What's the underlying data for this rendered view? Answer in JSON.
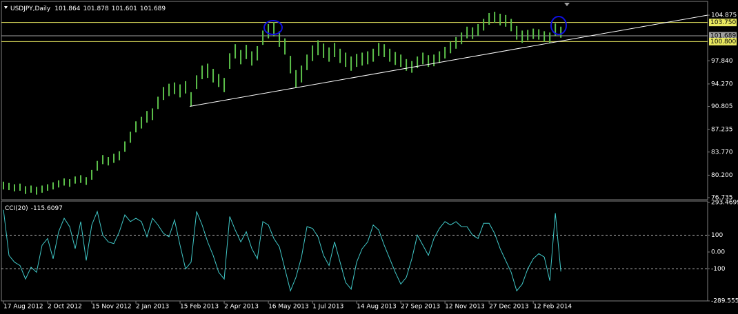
{
  "chart_data": [
    {
      "type": "ohlc",
      "title": "USDJPY,Daily",
      "quote": [
        101.864,
        101.878,
        101.601,
        101.689
      ],
      "color": "#5cc04a",
      "high": [
        79.2,
        79.0,
        78.8,
        78.9,
        78.5,
        78.6,
        78.4,
        78.6,
        78.8,
        79.1,
        79.4,
        79.7,
        79.6,
        80.0,
        80.2,
        79.9,
        81.0,
        82.4,
        83.3,
        83.0,
        83.5,
        83.9,
        85.4,
        86.9,
        88.5,
        89.2,
        90.1,
        90.5,
        92.3,
        93.8,
        94.3,
        94.5,
        94.2,
        94.7,
        93.0,
        95.6,
        97.1,
        97.4,
        96.6,
        95.8,
        95.2,
        99.0,
        100.4,
        99.5,
        100.3,
        99.3,
        100.1,
        102.5,
        103.5,
        103.8,
        102.4,
        101.3,
        98.6,
        96.4,
        97.1,
        98.8,
        100.2,
        101.0,
        100.5,
        99.9,
        100.6,
        99.7,
        99.1,
        98.5,
        98.9,
        99.1,
        99.3,
        99.7,
        100.6,
        100.4,
        99.7,
        99.2,
        98.8,
        98.1,
        97.8,
        98.5,
        99.1,
        98.7,
        98.8,
        99.3,
        100.0,
        100.8,
        101.5,
        102.2,
        103.1,
        103.0,
        103.5,
        104.3,
        105.2,
        105.4,
        105.1,
        104.9,
        104.3,
        103.2,
        102.5,
        102.6,
        102.8,
        102.7,
        102.4,
        102.2,
        103.6,
        103.1
      ],
      "low": [
        78.0,
        77.9,
        77.7,
        77.8,
        77.3,
        77.5,
        77.2,
        77.5,
        77.8,
        78.0,
        78.3,
        78.6,
        78.4,
        78.9,
        79.0,
        78.7,
        79.5,
        80.9,
        81.9,
        81.7,
        82.1,
        82.5,
        83.8,
        85.2,
        86.8,
        87.4,
        88.3,
        88.7,
        90.4,
        91.8,
        92.4,
        92.7,
        92.2,
        92.8,
        90.8,
        93.5,
        95.0,
        95.2,
        94.5,
        93.8,
        93.0,
        96.6,
        98.2,
        97.3,
        98.1,
        97.1,
        97.9,
        100.3,
        101.3,
        101.6,
        100.0,
        98.8,
        95.9,
        93.7,
        94.5,
        96.4,
        97.8,
        98.7,
        98.3,
        97.7,
        98.4,
        97.5,
        96.9,
        96.3,
        96.9,
        97.1,
        97.3,
        97.7,
        98.6,
        98.4,
        97.7,
        97.2,
        96.9,
        96.3,
        96.0,
        96.7,
        97.3,
        96.9,
        97.0,
        97.5,
        98.2,
        99.0,
        99.7,
        100.4,
        101.3,
        101.2,
        101.7,
        102.5,
        103.4,
        103.7,
        103.3,
        103.1,
        102.4,
        101.1,
        100.6,
        101.0,
        101.2,
        101.1,
        100.8,
        100.6,
        101.7,
        101.4
      ],
      "xlim": [
        0,
        127.6
      ],
      "ylim": [
        76.42,
        106.79
      ],
      "yticks": [
        104.875,
        {
          "value": 97.84,
          "label": "97.840"
        },
        {
          "value": 94.27,
          "label": "94.270"
        },
        90.805,
        87.235,
        {
          "value": 83.77,
          "label": "83.770"
        },
        {
          "value": 80.2,
          "label": "80.200"
        },
        76.735
      ],
      "hlines": [
        {
          "value": 103.75,
          "label": "103.750",
          "color": "#e8e860"
        },
        {
          "value": 101.689,
          "label": "101.689",
          "color": "#a0a0a0"
        },
        {
          "value": 100.8,
          "label": "100.800",
          "color": "#e8e860"
        }
      ],
      "trendline": {
        "x": [
          33.75,
          127.6
        ],
        "y": [
          90.805,
          104.875
        ],
        "color": "#ffffff"
      }
    },
    {
      "type": "line",
      "title": "CCI(20)",
      "last": -115.6097,
      "color": "#40c8c8",
      "values": [
        250,
        -20,
        -60,
        -80,
        -160,
        -90,
        -120,
        40,
        80,
        -40,
        120,
        200,
        150,
        20,
        180,
        -50,
        160,
        240,
        100,
        60,
        50,
        120,
        220,
        180,
        200,
        180,
        90,
        200,
        160,
        110,
        90,
        190,
        40,
        -100,
        -60,
        240,
        160,
        60,
        -20,
        -120,
        -160,
        210,
        130,
        60,
        120,
        20,
        -40,
        180,
        160,
        80,
        30,
        -100,
        -230,
        -150,
        -30,
        150,
        140,
        90,
        -20,
        -80,
        60,
        -60,
        -180,
        -220,
        -60,
        20,
        60,
        160,
        130,
        40,
        -40,
        -120,
        -190,
        -150,
        -40,
        100,
        40,
        -20,
        80,
        140,
        180,
        160,
        180,
        150,
        150,
        100,
        80,
        170,
        170,
        110,
        20,
        -50,
        -120,
        -230,
        -190,
        -100,
        -40,
        -10,
        -30,
        -170,
        230,
        -115.6097
      ],
      "xlim": [
        0,
        127.6
      ],
      "ylim": [
        -289.555,
        293.4699
      ],
      "yticks": [
        {
          "value": 293.4699,
          "label": "293.4699"
        },
        100,
        {
          "value": 0,
          "label": "0.00"
        },
        -100,
        {
          "value": -289.555,
          "label": "-289.555"
        }
      ],
      "levels": [
        100,
        -100
      ],
      "xticks": [
        {
          "value": 0,
          "label": "17 Aug 2012"
        },
        {
          "value": 8,
          "label": "2 Oct 2012"
        },
        {
          "value": 16,
          "label": "15 Nov 2012"
        },
        {
          "value": 24,
          "label": "2 Jan 2013"
        },
        {
          "value": 32,
          "label": "15 Feb 2013"
        },
        {
          "value": 40,
          "label": "2 Apr 2013"
        },
        {
          "value": 48,
          "label": "16 May 2013"
        },
        {
          "value": 56,
          "label": "1 Jul 2013"
        },
        {
          "value": 64,
          "label": "14 Aug 2013"
        },
        {
          "value": 72,
          "label": "27 Sep 2013"
        },
        {
          "value": 80,
          "label": "12 Nov 2013"
        },
        {
          "value": 88,
          "label": "27 Dec 2013"
        },
        {
          "value": 96,
          "label": "12 Feb 2014"
        }
      ]
    }
  ]
}
